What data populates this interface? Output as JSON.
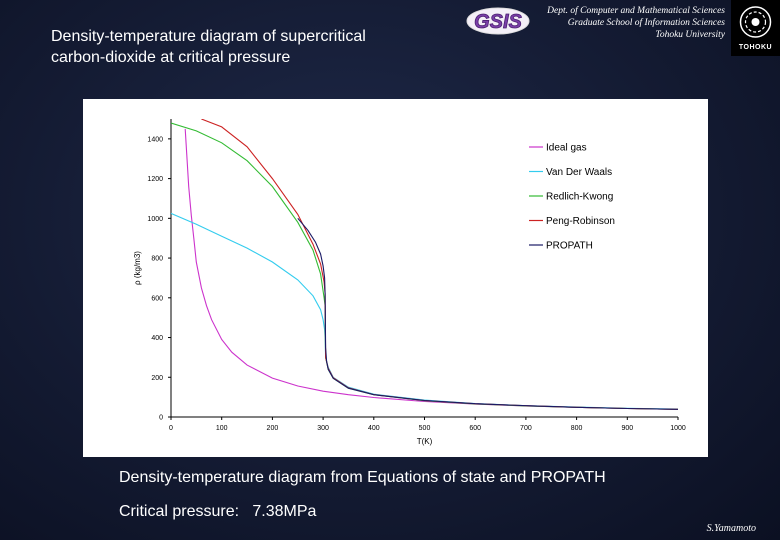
{
  "slide": {
    "title_line1": "Density-temperature diagram of supercritical",
    "title_line2": "carbon-dioxide at critical pressure",
    "logo_text": "GSIS",
    "dept_line1": "Dept. of Computer and Mathematical Sciences",
    "dept_line2": "Graduate School of Information Sciences",
    "dept_line3": "Tohoku University",
    "seal_text": "TOHOKU",
    "caption": "Density-temperature diagram from Equations of state and PROPATH",
    "critical_label": "Critical pressure:",
    "critical_value": "7.38MPa",
    "author": "S.Yamamoto"
  },
  "chart_data": {
    "type": "line",
    "xlabel": "T(K)",
    "ylabel": "ρ (kg/m3)",
    "xlim": [
      0,
      1000
    ],
    "ylim": [
      0,
      1500
    ],
    "x_ticks": [
      0,
      100,
      200,
      300,
      400,
      500,
      600,
      700,
      800,
      900,
      1000
    ],
    "y_ticks": [
      0,
      200,
      400,
      600,
      800,
      1000,
      1200,
      1400
    ],
    "grid": false,
    "legend_position": "top-right",
    "series": [
      {
        "name": "Ideal gas",
        "color": "#cc33cc",
        "x": [
          28,
          35,
          40,
          45,
          50,
          60,
          70,
          80,
          100,
          120,
          150,
          200,
          250,
          300,
          350,
          400,
          500,
          600,
          700,
          800,
          900,
          1000
        ],
        "y": [
          1450,
          1160,
          1015,
          900,
          780,
          650,
          560,
          490,
          390,
          326,
          261,
          196,
          156,
          130,
          112,
          98,
          78,
          65,
          56,
          49,
          43,
          39
        ]
      },
      {
        "name": "Van Der Waals",
        "color": "#33ccee",
        "x": [
          0,
          50,
          100,
          150,
          200,
          250,
          280,
          295,
          300,
          303,
          304,
          305,
          310,
          320,
          350,
          400,
          500,
          600,
          700,
          800,
          900,
          1000
        ],
        "y": [
          1025,
          970,
          910,
          850,
          780,
          690,
          610,
          540,
          490,
          440,
          400,
          300,
          250,
          200,
          150,
          115,
          85,
          68,
          57,
          50,
          44,
          40
        ]
      },
      {
        "name": "Redlich-Kwong",
        "color": "#33bb33",
        "x": [
          0,
          50,
          100,
          150,
          200,
          250,
          280,
          295,
          302,
          304,
          305,
          310,
          320,
          350,
          400,
          500,
          600,
          700,
          800,
          900,
          1000
        ],
        "y": [
          1480,
          1440,
          1380,
          1290,
          1160,
          980,
          840,
          720,
          600,
          560,
          300,
          240,
          195,
          145,
          112,
          82,
          66,
          56,
          49,
          43,
          39
        ]
      },
      {
        "name": "Peng-Robinson",
        "color": "#cc2222",
        "x": [
          60,
          100,
          150,
          200,
          250,
          280,
          295,
          302,
          304,
          305,
          310,
          320,
          350,
          400,
          500,
          600,
          700,
          800,
          900,
          1000
        ],
        "y": [
          1500,
          1460,
          1360,
          1200,
          1020,
          870,
          770,
          680,
          620,
          300,
          245,
          198,
          147,
          113,
          83,
          67,
          57,
          49,
          43,
          39
        ]
      },
      {
        "name": "PROPATH",
        "color": "#1a1a66",
        "x": [
          250,
          270,
          285,
          295,
          300,
          303,
          304,
          305,
          307,
          310,
          320,
          350,
          400,
          500,
          600,
          700,
          800,
          900,
          1000
        ],
        "y": [
          1000,
          940,
          880,
          820,
          760,
          700,
          620,
          350,
          280,
          240,
          195,
          145,
          112,
          83,
          67,
          57,
          49,
          43,
          39
        ]
      }
    ]
  }
}
